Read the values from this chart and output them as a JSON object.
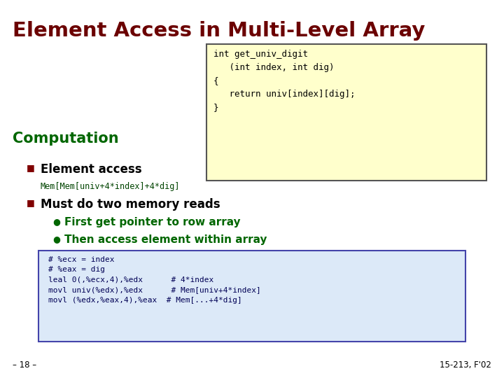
{
  "title": "Element Access in Multi-Level Array",
  "title_color": "#6B0000",
  "bg_color": "#FFFFFF",
  "code_box_text": "int get_univ_digit\n   (int index, int dig)\n{\n   return univ[index][dig];\n}",
  "code_box_bg": "#FFFFCC",
  "code_box_border": "#555555",
  "section_label": "Computation",
  "section_color": "#006600",
  "bullet1_label": "Element access",
  "bullet1_sub": "Mem[Mem[univ+4*index]+4*dig]",
  "bullet2_label": "Must do two memory reads",
  "sub_bullet1": "First get pointer to row array",
  "sub_bullet2": "Then access element within array",
  "bullet_color": "#000000",
  "bullet_marker_color": "#800000",
  "sub_bullet_color": "#006600",
  "asm_box_text": "# %ecx = index\n# %eax = dig\nleal 0(,%ecx,4),%edx      # 4*index\nmovl univ(%edx),%edx      # Mem[univ+4*index]\nmovl (%edx,%eax,4),%eax  # Mem[...+4*dig]",
  "asm_box_bg": "#DCE9F8",
  "asm_box_border": "#4444AA",
  "footer_left": "– 18 –",
  "footer_right": "15-213, F'02",
  "footer_color": "#000000"
}
